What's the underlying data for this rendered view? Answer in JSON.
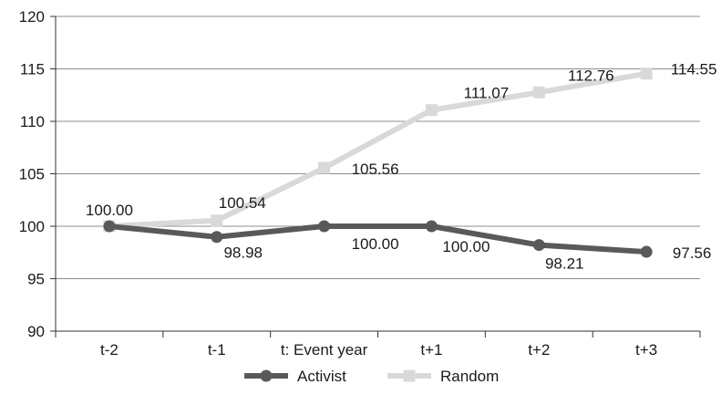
{
  "chart_data": {
    "type": "line",
    "categories": [
      "t-2",
      "t-1",
      "t: Event year",
      "t+1",
      "t+2",
      "t+3"
    ],
    "series": [
      {
        "name": "Activist",
        "values": [
          100.0,
          98.98,
          100.0,
          100.0,
          98.21,
          97.56
        ],
        "labels": [
          "100.00",
          "98.98",
          "100.00",
          "100.00",
          "98.21",
          "97.56"
        ],
        "color": "#595959",
        "marker": "circle"
      },
      {
        "name": "Random",
        "values": [
          100.0,
          100.54,
          105.56,
          111.07,
          112.76,
          114.55
        ],
        "labels": [
          "100.00",
          "100.54",
          "105.56",
          "111.07",
          "112.76",
          "114.55"
        ],
        "color": "#d9d9d9",
        "marker": "square"
      }
    ],
    "ylim": [
      90,
      120
    ],
    "yticks": [
      90,
      95,
      100,
      105,
      110,
      115,
      120
    ],
    "ytick_labels": [
      "90",
      "95",
      "100",
      "105",
      "110",
      "115",
      "120"
    ],
    "grid": "horizontal",
    "legend": "bottom",
    "title": "",
    "xlabel": "",
    "ylabel": ""
  }
}
